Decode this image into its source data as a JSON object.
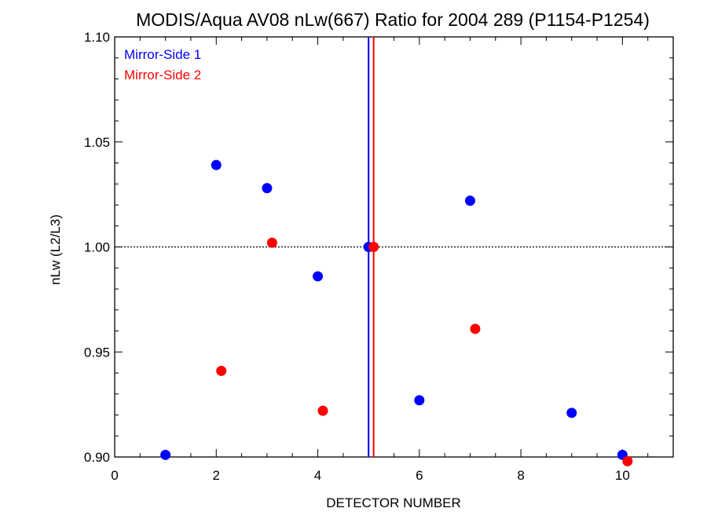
{
  "chart_data": {
    "type": "scatter",
    "title": "MODIS/Aqua AV08 nLw(667) Ratio for 2004 289 (P1154-P1254)",
    "xlabel": "DETECTOR NUMBER",
    "ylabel": "nLw (L2/L3)",
    "xlim": [
      0,
      11
    ],
    "ylim": [
      0.9,
      1.1
    ],
    "xticks": [
      "0",
      "2",
      "4",
      "6",
      "8",
      "10"
    ],
    "yticks": [
      "0.90",
      "0.95",
      "1.00",
      "1.05",
      "1.10"
    ],
    "reference_line_y": 1.0,
    "legend_position": "top-left",
    "series": [
      {
        "name": "Mirror-Side 1",
        "color": "#0000ff",
        "vline_x": 5.0,
        "x": [
          1,
          2,
          3,
          4,
          5,
          6,
          7,
          9,
          10
        ],
        "y": [
          0.901,
          1.039,
          1.028,
          0.986,
          1.0,
          0.927,
          1.022,
          0.921,
          0.901
        ]
      },
      {
        "name": "Mirror-Side 2",
        "color": "#ff0000",
        "vline_x": 5.1,
        "x": [
          2.1,
          3.1,
          4.1,
          5.1,
          7.1,
          10.1
        ],
        "y": [
          0.941,
          1.002,
          0.922,
          1.0,
          0.961,
          0.898
        ]
      }
    ]
  }
}
